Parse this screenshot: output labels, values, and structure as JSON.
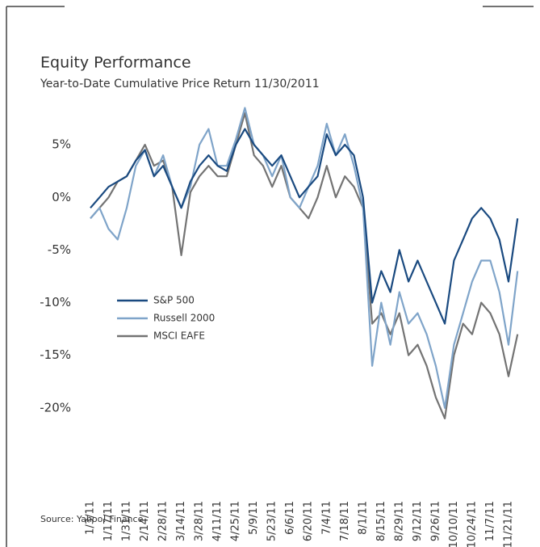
{
  "chart_data": {
    "type": "line",
    "title": "Equity Performance",
    "subtitle": "Year-to-Date Cumulative Price Return 11/30/2011",
    "source": "Source: Yahoo! Finance",
    "categories": [
      "1/3/11",
      null,
      "1/17/11",
      null,
      "1/31/11",
      null,
      "2/14/11",
      null,
      "2/28/11",
      null,
      "3/14/11",
      null,
      "3/28/11",
      null,
      "4/11/11",
      null,
      "4/25/11",
      null,
      "5/9/11",
      null,
      "5/23/11",
      null,
      "6/6/11",
      null,
      "6/20/11",
      null,
      "7/4/11",
      null,
      "7/18/11",
      null,
      "8/1/11",
      null,
      "8/15/11",
      null,
      "8/29/11",
      null,
      "9/12/11",
      null,
      "9/26/11",
      null,
      "10/10/11",
      null,
      "10/24/11",
      null,
      "11/7/11",
      null,
      "11/21/11",
      null
    ],
    "series": [
      {
        "name": "S&P 500",
        "color": "#1a4a80",
        "values": [
          -1,
          0,
          1,
          1.5,
          2,
          3.5,
          4.5,
          2,
          3,
          1,
          -1,
          1.5,
          3,
          4,
          3,
          2.5,
          5,
          6.5,
          5,
          4,
          3,
          4,
          2,
          0,
          1,
          2,
          6,
          4,
          5,
          4,
          0,
          -10,
          -7,
          -9,
          -5,
          -8,
          -6,
          -8,
          -10,
          -12,
          -6,
          -4,
          -2,
          -1,
          -2,
          -4,
          -8,
          -2
        ]
      },
      {
        "name": "Russell 2000",
        "color": "#7fa4c9",
        "values": [
          -2,
          -1,
          -3,
          -4,
          -1,
          3,
          4.5,
          2,
          4,
          1,
          -1,
          1,
          5,
          6.5,
          3,
          3,
          5.5,
          8.5,
          5,
          4,
          2,
          4,
          0,
          -1,
          1,
          3,
          7,
          4,
          6,
          3,
          -1,
          -16,
          -10,
          -14,
          -9,
          -12,
          -11,
          -13,
          -16,
          -20,
          -14,
          -11,
          -8,
          -6,
          -6,
          -9,
          -14,
          -7
        ]
      },
      {
        "name": "MSCI EAFE",
        "color": "#737373",
        "values": [
          -2,
          -1,
          0,
          1.5,
          2,
          3.5,
          5,
          3,
          3.5,
          1,
          -5.5,
          0.5,
          2,
          3,
          2,
          2,
          5,
          8,
          4,
          3,
          1,
          3,
          0,
          -1,
          -2,
          0,
          3,
          0,
          2,
          1,
          -1,
          -12,
          -11,
          -13,
          -11,
          -15,
          -14,
          -16,
          -19,
          -21,
          -15,
          -12,
          -13,
          -10,
          -11,
          -13,
          -17,
          -13
        ]
      }
    ],
    "ylim": [
      -24,
      9
    ],
    "yticks": [
      {
        "value": -20,
        "label": "-20%"
      },
      {
        "value": -15,
        "label": "-15%"
      },
      {
        "value": -10,
        "label": "-10%"
      },
      {
        "value": -5,
        "label": "-5%"
      },
      {
        "value": 0,
        "label": "0%"
      },
      {
        "value": 5,
        "label": "5%"
      }
    ],
    "grid": false
  }
}
